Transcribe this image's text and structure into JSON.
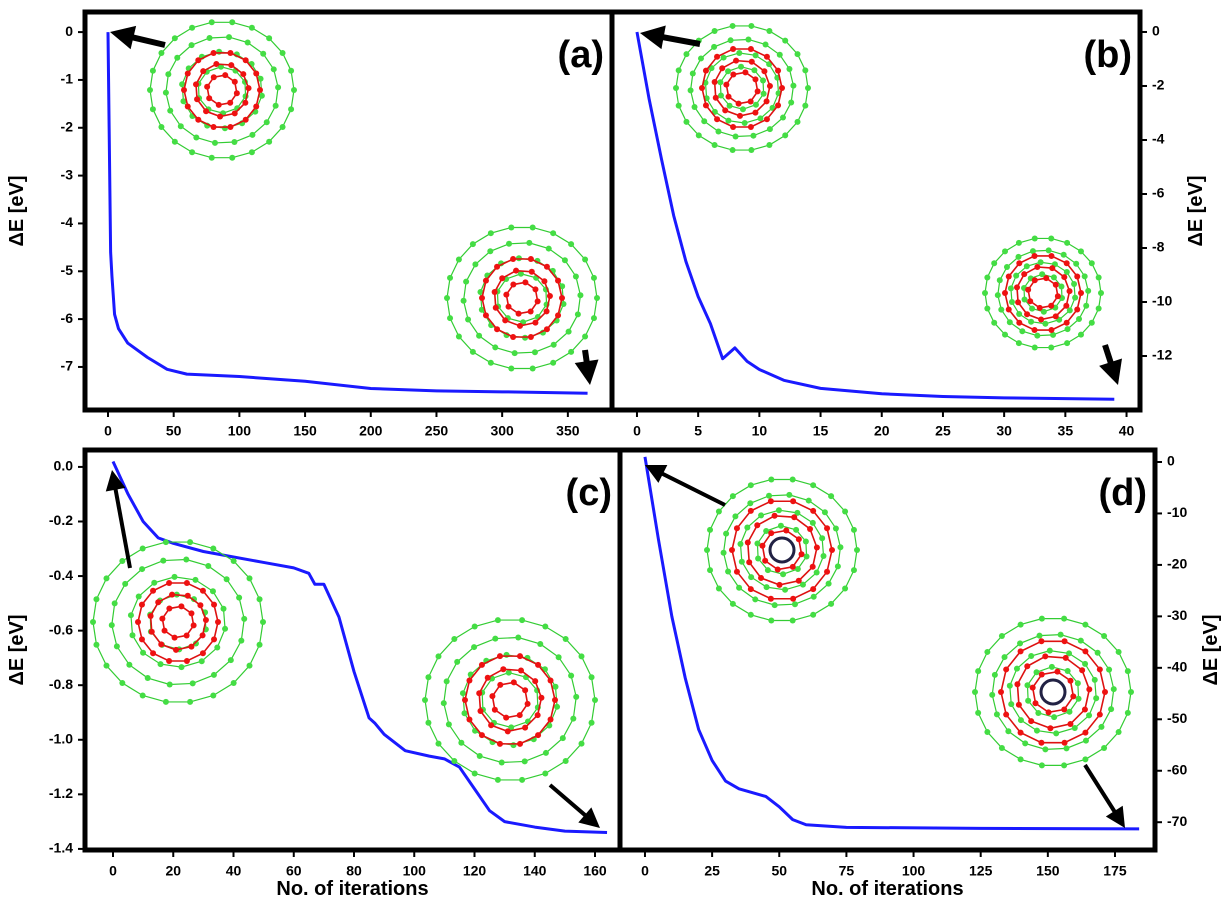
{
  "chart_data": [
    {
      "type": "line",
      "label": "(a)",
      "ylabel": "ΔE [eV]",
      "y_axis_side": "left",
      "xlim": [
        -17.5,
        383.6
      ],
      "ylim": [
        -7.9,
        0.42
      ],
      "xticks": [
        0,
        50,
        100,
        150,
        200,
        250,
        300,
        350
      ],
      "yticks": [
        0,
        -1,
        -2,
        -3,
        -4,
        -5,
        -6,
        -7
      ],
      "series": [
        {
          "color": "#1a1aff",
          "x": [
            0,
            2,
            3,
            5,
            8,
            15,
            30,
            45,
            60,
            100,
            150,
            200,
            250,
            300,
            365
          ],
          "values": [
            0,
            -4.6,
            -5.1,
            -5.9,
            -6.2,
            -6.5,
            -6.8,
            -7.05,
            -7.15,
            -7.2,
            -7.3,
            -7.45,
            -7.5,
            -7.52,
            -7.55
          ]
        }
      ]
    },
    {
      "type": "line",
      "label": "(b)",
      "ylabel": "ΔE [eV]",
      "y_axis_side": "right",
      "xlim": [
        -2.04,
        41.1
      ],
      "ylim": [
        -14,
        0.74
      ],
      "xticks": [
        0,
        5,
        10,
        15,
        20,
        25,
        30,
        35,
        40
      ],
      "yticks": [
        0,
        -2,
        -4,
        -6,
        -8,
        -10,
        -12
      ],
      "series": [
        {
          "color": "#1a1aff",
          "x": [
            0,
            1,
            2,
            3,
            4,
            5,
            6,
            7,
            8,
            9,
            10,
            12,
            15,
            20,
            25,
            30,
            39
          ],
          "values": [
            0,
            -2.5,
            -4.7,
            -6.8,
            -8.5,
            -9.8,
            -10.8,
            -12.1,
            -11.7,
            -12.2,
            -12.5,
            -12.9,
            -13.2,
            -13.4,
            -13.5,
            -13.55,
            -13.6
          ]
        }
      ]
    },
    {
      "type": "line",
      "label": "(c)",
      "ylabel": "ΔE [eV]",
      "xlabel": "No. of iterations",
      "y_axis_side": "left",
      "xlim": [
        -9.3,
        168.3
      ],
      "ylim": [
        -1.404,
        0.062
      ],
      "xticks": [
        0,
        20,
        40,
        60,
        80,
        100,
        120,
        140,
        160
      ],
      "yticks": [
        {
          "value": 0,
          "label": "0.0"
        },
        -0.2,
        -0.4,
        -0.6,
        -0.8,
        {
          "value": -1,
          "label": "-1.0"
        },
        -1.2,
        -1.4
      ],
      "series": [
        {
          "color": "#1a1aff",
          "x": [
            0,
            5,
            10,
            15,
            20,
            30,
            50,
            60,
            65,
            67,
            70,
            75,
            80,
            85,
            87,
            90,
            97,
            105,
            110,
            115,
            120,
            125,
            130,
            140,
            150,
            164
          ],
          "values": [
            0.02,
            -0.1,
            -0.2,
            -0.26,
            -0.28,
            -0.31,
            -0.35,
            -0.37,
            -0.39,
            -0.43,
            -0.43,
            -0.55,
            -0.75,
            -0.92,
            -0.94,
            -0.98,
            -1.04,
            -1.06,
            -1.07,
            -1.1,
            -1.18,
            -1.26,
            -1.3,
            -1.32,
            -1.335,
            -1.34
          ]
        }
      ]
    },
    {
      "type": "line",
      "label": "(d)",
      "ylabel": "ΔE [eV]",
      "xlabel": "No. of iterations",
      "y_axis_side": "right",
      "xlim": [
        -9.3,
        189.9
      ],
      "ylim": [
        -75.4,
        2.33
      ],
      "xticks": [
        0,
        25,
        50,
        75,
        100,
        125,
        150,
        175
      ],
      "yticks": [
        0,
        -10,
        -20,
        -30,
        -40,
        -50,
        -60,
        -70
      ],
      "series": [
        {
          "color": "#1a1aff",
          "x": [
            0,
            5,
            10,
            15,
            20,
            25,
            30,
            35,
            45,
            50,
            55,
            60,
            75,
            125,
            184
          ],
          "values": [
            1,
            -15,
            -30,
            -42,
            -52,
            -58,
            -62,
            -63.5,
            -65,
            -67,
            -69.5,
            -70.5,
            -71,
            -71.2,
            -71.3
          ]
        }
      ]
    }
  ]
}
